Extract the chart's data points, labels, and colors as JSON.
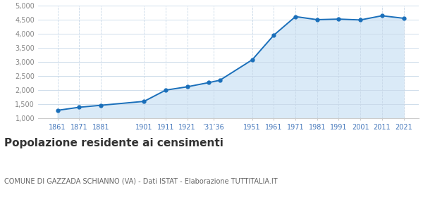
{
  "years": [
    1861,
    1871,
    1881,
    1901,
    1911,
    1921,
    1931,
    1936,
    1951,
    1961,
    1971,
    1981,
    1991,
    2001,
    2011,
    2021
  ],
  "population": [
    1280,
    1390,
    1460,
    1600,
    2000,
    2120,
    2270,
    2350,
    3080,
    3960,
    4620,
    4510,
    4530,
    4500,
    4650,
    4560
  ],
  "x_tick_labels": [
    "1861",
    "1871",
    "1881",
    "1901",
    "1911",
    "1921",
    "’31’36",
    "1951",
    "1961",
    "1971",
    "1981",
    "1991",
    "2001",
    "2011",
    "2021"
  ],
  "x_tick_positions": [
    1861,
    1871,
    1881,
    1901,
    1911,
    1921,
    1933,
    1951,
    1961,
    1971,
    1981,
    1991,
    2001,
    2011,
    2021
  ],
  "line_color": "#1a6fba",
  "fill_color": "#daeaf7",
  "marker_color": "#1a6fba",
  "grid_color_h": "#c8d8e8",
  "grid_color_v": "#c8d8e8",
  "bg_color": "#ffffff",
  "ylim": [
    1000,
    5000
  ],
  "ytick_values": [
    1000,
    1500,
    2000,
    2500,
    3000,
    3500,
    4000,
    4500,
    5000
  ],
  "xlim_left": 1852,
  "xlim_right": 2028,
  "title": "Popolazione residente ai censimenti",
  "subtitle": "COMUNE DI GAZZADA SCHIANNO (VA) - Dati ISTAT - Elaborazione TUTTITALIA.IT",
  "title_fontsize": 11,
  "subtitle_fontsize": 7,
  "tick_label_color": "#4477bb",
  "ytick_label_color": "#888888"
}
